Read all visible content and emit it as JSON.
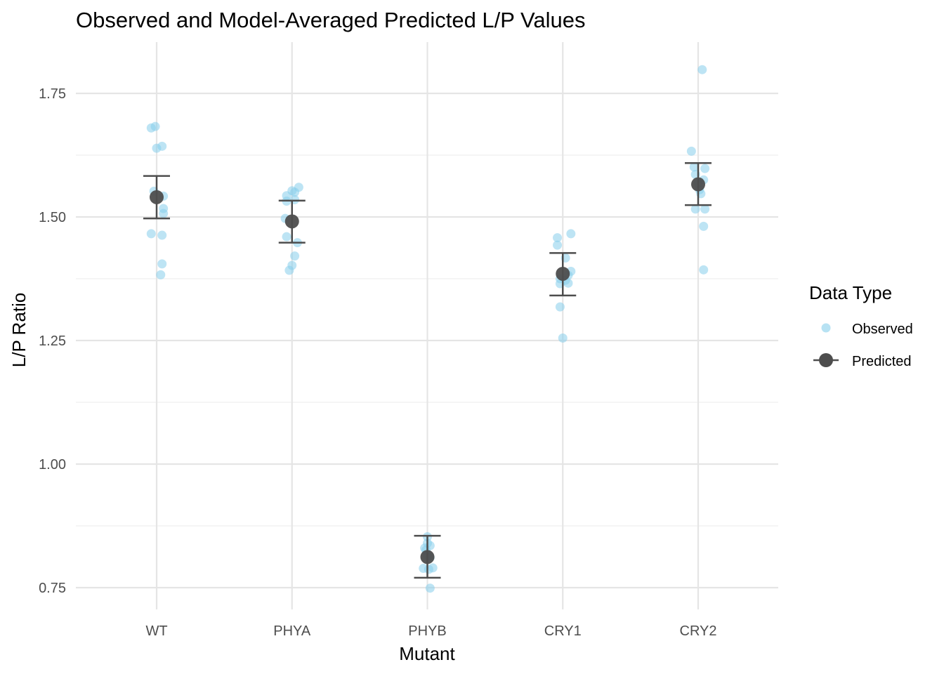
{
  "chart_data": {
    "type": "scatter",
    "title": "Observed and Model-Averaged Predicted L/P Values",
    "xlabel": "Mutant",
    "ylabel": "L/P Ratio",
    "categories": [
      "WT",
      "PHYA",
      "PHYB",
      "CRY1",
      "CRY2"
    ],
    "ylim": [
      0.7,
      1.81
    ],
    "yticks": [
      0.75,
      1.0,
      1.25,
      1.5,
      1.75
    ],
    "ytick_labels": [
      "0.75",
      "1.00",
      "1.25",
      "1.50",
      "1.75"
    ],
    "grid": true,
    "legend": {
      "title": "Data Type",
      "position": "right",
      "entries": [
        "Observed",
        "Predicted"
      ]
    },
    "series": [
      {
        "name": "Observed",
        "color": "#87CEEB",
        "points": [
          {
            "category": "WT",
            "jitter": -0.04,
            "y": 1.68
          },
          {
            "category": "WT",
            "jitter": -0.01,
            "y": 1.683
          },
          {
            "category": "WT",
            "jitter": 0.0,
            "y": 1.639
          },
          {
            "category": "WT",
            "jitter": 0.04,
            "y": 1.643
          },
          {
            "category": "WT",
            "jitter": -0.02,
            "y": 1.552
          },
          {
            "category": "WT",
            "jitter": 0.05,
            "y": 1.542
          },
          {
            "category": "WT",
            "jitter": 0.05,
            "y": 1.517
          },
          {
            "category": "WT",
            "jitter": 0.05,
            "y": 1.507
          },
          {
            "category": "WT",
            "jitter": -0.04,
            "y": 1.466
          },
          {
            "category": "WT",
            "jitter": 0.04,
            "y": 1.463
          },
          {
            "category": "WT",
            "jitter": 0.04,
            "y": 1.405
          },
          {
            "category": "WT",
            "jitter": 0.03,
            "y": 1.383
          },
          {
            "category": "PHYA",
            "jitter": 0.05,
            "y": 1.56
          },
          {
            "category": "PHYA",
            "jitter": 0.0,
            "y": 1.553
          },
          {
            "category": "PHYA",
            "jitter": 0.02,
            "y": 1.55
          },
          {
            "category": "PHYA",
            "jitter": -0.04,
            "y": 1.543
          },
          {
            "category": "PHYA",
            "jitter": 0.02,
            "y": 1.535
          },
          {
            "category": "PHYA",
            "jitter": -0.04,
            "y": 1.532
          },
          {
            "category": "PHYA",
            "jitter": -0.05,
            "y": 1.497
          },
          {
            "category": "PHYA",
            "jitter": -0.04,
            "y": 1.46
          },
          {
            "category": "PHYA",
            "jitter": 0.04,
            "y": 1.448
          },
          {
            "category": "PHYA",
            "jitter": 0.02,
            "y": 1.421
          },
          {
            "category": "PHYA",
            "jitter": 0.0,
            "y": 1.402
          },
          {
            "category": "PHYA",
            "jitter": -0.02,
            "y": 1.392
          },
          {
            "category": "PHYB",
            "jitter": 0.0,
            "y": 0.853
          },
          {
            "category": "PHYB",
            "jitter": 0.0,
            "y": 0.84
          },
          {
            "category": "PHYB",
            "jitter": 0.02,
            "y": 0.835
          },
          {
            "category": "PHYB",
            "jitter": -0.02,
            "y": 0.83
          },
          {
            "category": "PHYB",
            "jitter": -0.01,
            "y": 0.826
          },
          {
            "category": "PHYB",
            "jitter": 0.0,
            "y": 0.815
          },
          {
            "category": "PHYB",
            "jitter": 0.02,
            "y": 0.811
          },
          {
            "category": "PHYB",
            "jitter": 0.04,
            "y": 0.79
          },
          {
            "category": "PHYB",
            "jitter": -0.03,
            "y": 0.789
          },
          {
            "category": "PHYB",
            "jitter": 0.01,
            "y": 0.787
          },
          {
            "category": "PHYB",
            "jitter": 0.02,
            "y": 0.749
          },
          {
            "category": "CRY1",
            "jitter": 0.06,
            "y": 1.466
          },
          {
            "category": "CRY1",
            "jitter": -0.04,
            "y": 1.458
          },
          {
            "category": "CRY1",
            "jitter": -0.04,
            "y": 1.443
          },
          {
            "category": "CRY1",
            "jitter": 0.02,
            "y": 1.417
          },
          {
            "category": "CRY1",
            "jitter": 0.06,
            "y": 1.39
          },
          {
            "category": "CRY1",
            "jitter": 0.04,
            "y": 1.382
          },
          {
            "category": "CRY1",
            "jitter": -0.02,
            "y": 1.375
          },
          {
            "category": "CRY1",
            "jitter": 0.02,
            "y": 1.372
          },
          {
            "category": "CRY1",
            "jitter": 0.04,
            "y": 1.366
          },
          {
            "category": "CRY1",
            "jitter": -0.02,
            "y": 1.365
          },
          {
            "category": "CRY1",
            "jitter": -0.02,
            "y": 1.318
          },
          {
            "category": "CRY1",
            "jitter": 0.0,
            "y": 1.255
          },
          {
            "category": "CRY2",
            "jitter": 0.03,
            "y": 1.798
          },
          {
            "category": "CRY2",
            "jitter": -0.05,
            "y": 1.633
          },
          {
            "category": "CRY2",
            "jitter": -0.03,
            "y": 1.601
          },
          {
            "category": "CRY2",
            "jitter": 0.05,
            "y": 1.598
          },
          {
            "category": "CRY2",
            "jitter": -0.02,
            "y": 1.586
          },
          {
            "category": "CRY2",
            "jitter": 0.04,
            "y": 1.575
          },
          {
            "category": "CRY2",
            "jitter": 0.0,
            "y": 1.568
          },
          {
            "category": "CRY2",
            "jitter": 0.01,
            "y": 1.555
          },
          {
            "category": "CRY2",
            "jitter": 0.02,
            "y": 1.547
          },
          {
            "category": "CRY2",
            "jitter": -0.02,
            "y": 1.516
          },
          {
            "category": "CRY2",
            "jitter": 0.05,
            "y": 1.516
          },
          {
            "category": "CRY2",
            "jitter": 0.04,
            "y": 1.481
          },
          {
            "category": "CRY2",
            "jitter": 0.04,
            "y": 1.393
          }
        ]
      },
      {
        "name": "Predicted",
        "color": "#4d4d4d",
        "points": [
          {
            "category": "WT",
            "y": 1.54,
            "ymin": 1.497,
            "ymax": 1.583
          },
          {
            "category": "PHYA",
            "y": 1.491,
            "ymin": 1.448,
            "ymax": 1.533
          },
          {
            "category": "PHYB",
            "y": 0.812,
            "ymin": 0.77,
            "ymax": 0.855
          },
          {
            "category": "CRY1",
            "y": 1.385,
            "ymin": 1.341,
            "ymax": 1.427
          },
          {
            "category": "CRY2",
            "y": 1.566,
            "ymin": 1.524,
            "ymax": 1.609
          }
        ]
      }
    ]
  }
}
